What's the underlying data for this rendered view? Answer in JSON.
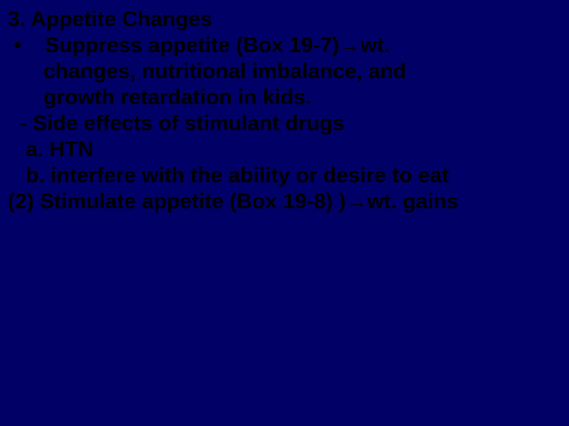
{
  "slide": {
    "background_color": "#010066",
    "text_color": "#000000",
    "font_family": "Arial",
    "font_weight": "bold",
    "font_size_pt": 20,
    "lines": {
      "l1": "3. Appetite Changes",
      "l2": " •    Suppress appetite (Box 19-7)→wt.",
      "l3": "      changes, nutritional imbalance, and",
      "l4": "      growth retardation in kids.",
      "l5": "  - Side effects of stimulant drugs",
      "l6": "   a. HTN",
      "l7": "   b. interfere with the ability or desire to eat",
      "l8": "(2) Stimulate appetite (Box 19-8) )→wt. gains"
    }
  }
}
